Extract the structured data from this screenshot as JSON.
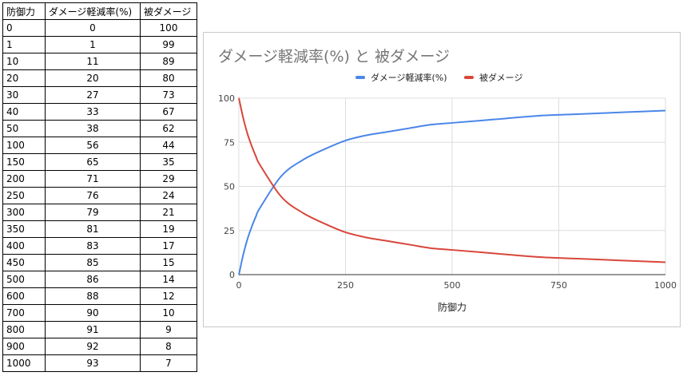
{
  "table": {
    "headers": [
      "防御力",
      "ダメージ軽減率(%)",
      "被ダメージ"
    ],
    "rows": [
      [
        "0",
        "0",
        "100"
      ],
      [
        "1",
        "1",
        "99"
      ],
      [
        "10",
        "11",
        "89"
      ],
      [
        "20",
        "20",
        "80"
      ],
      [
        "30",
        "27",
        "73"
      ],
      [
        "40",
        "33",
        "67"
      ],
      [
        "50",
        "38",
        "62"
      ],
      [
        "100",
        "56",
        "44"
      ],
      [
        "150",
        "65",
        "35"
      ],
      [
        "200",
        "71",
        "29"
      ],
      [
        "250",
        "76",
        "24"
      ],
      [
        "300",
        "79",
        "21"
      ],
      [
        "350",
        "81",
        "19"
      ],
      [
        "400",
        "83",
        "17"
      ],
      [
        "450",
        "85",
        "15"
      ],
      [
        "500",
        "86",
        "14"
      ],
      [
        "600",
        "88",
        "12"
      ],
      [
        "700",
        "90",
        "10"
      ],
      [
        "800",
        "91",
        "9"
      ],
      [
        "900",
        "92",
        "8"
      ],
      [
        "1000",
        "93",
        "7"
      ]
    ]
  },
  "chart_data": {
    "type": "line",
    "title": "ダメージ軽減率(%) と 被ダメージ",
    "xlabel": "防御力",
    "ylabel": "",
    "xlim": [
      0,
      1000
    ],
    "ylim": [
      0,
      100
    ],
    "xticks": [
      0,
      250,
      500,
      750,
      1000
    ],
    "yticks": [
      0,
      25,
      50,
      75,
      100
    ],
    "grid": true,
    "legend_position": "top",
    "x": [
      0,
      1,
      10,
      20,
      30,
      40,
      50,
      100,
      150,
      200,
      250,
      300,
      350,
      400,
      450,
      500,
      600,
      700,
      800,
      900,
      1000
    ],
    "series": [
      {
        "name": "ダメージ軽減率(%)",
        "color": "#4a86e8",
        "values": [
          0,
          1,
          11,
          20,
          27,
          33,
          38,
          56,
          65,
          71,
          76,
          79,
          81,
          83,
          85,
          86,
          88,
          90,
          91,
          92,
          93
        ]
      },
      {
        "name": "被ダメージ",
        "color": "#d9463b",
        "values": [
          100,
          99,
          89,
          80,
          73,
          67,
          62,
          44,
          35,
          29,
          24,
          21,
          19,
          17,
          15,
          14,
          12,
          10,
          9,
          8,
          7
        ]
      }
    ]
  }
}
